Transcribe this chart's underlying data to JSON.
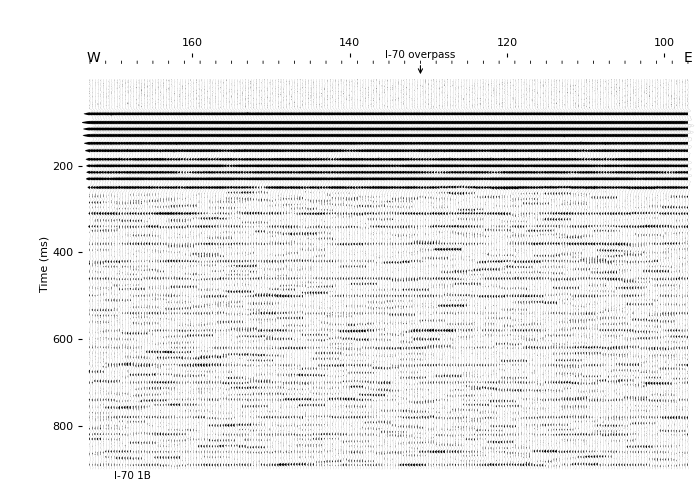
{
  "ylabel": "Time (ms)",
  "x_label_W": "W",
  "x_label_E": "E",
  "cdp_ticks": [
    160,
    140,
    120,
    100
  ],
  "cdp_min": 97,
  "cdp_max": 173,
  "time_min": 0,
  "time_max": 900,
  "time_ticks": [
    200,
    400,
    600,
    800
  ],
  "annotation_text": "I-70 overpass",
  "annotation_cdp": 131,
  "bottom_label": "I-70 1B",
  "background_color": "#ffffff",
  "trace_color": "#000000",
  "fig_width": 7.0,
  "fig_height": 4.9,
  "dpi": 100,
  "num_traces": 220,
  "seed": 123
}
